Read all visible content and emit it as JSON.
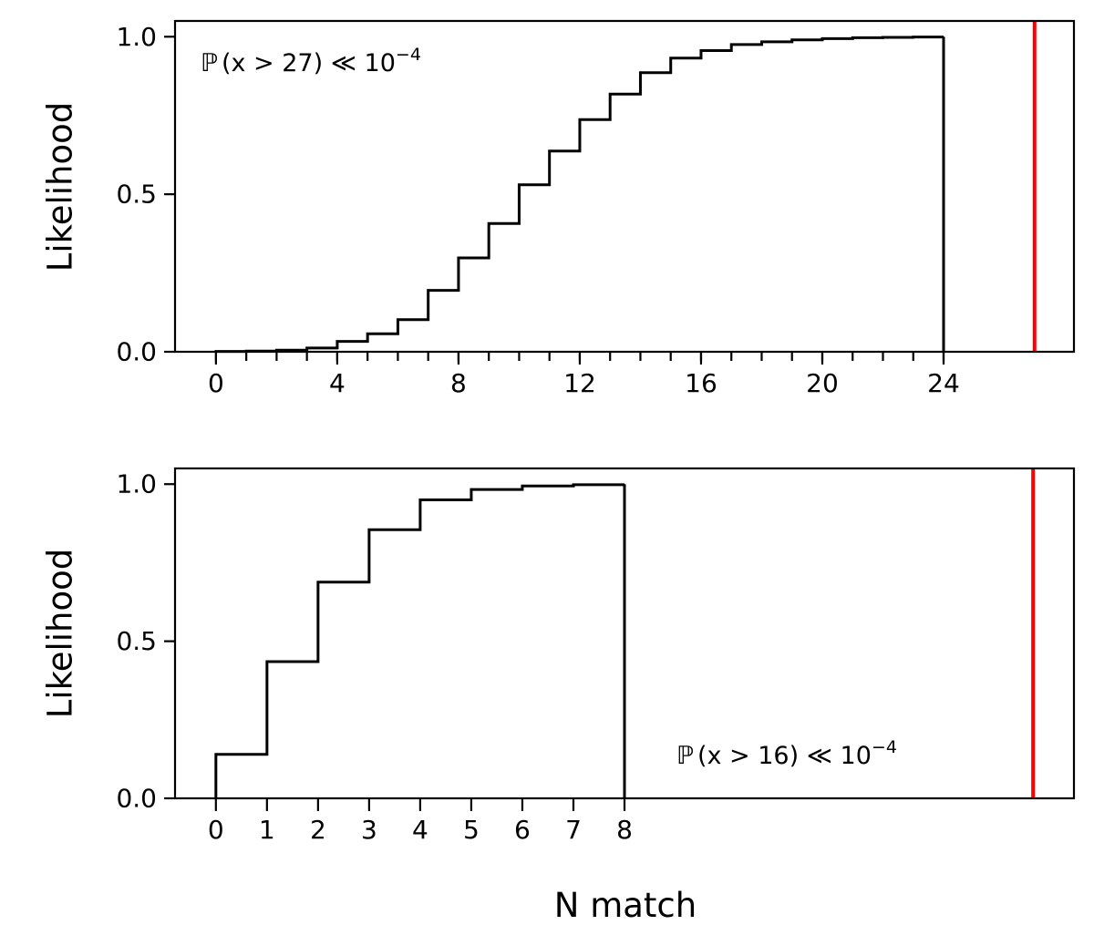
{
  "chart_data": [
    {
      "type": "step",
      "ylabel": "Likelihood",
      "xlabel": "",
      "x": [
        0,
        1,
        2,
        3,
        4,
        5,
        6,
        7,
        8,
        9,
        10,
        11,
        12,
        13,
        14,
        15,
        16,
        17,
        18,
        19,
        20,
        21,
        22,
        23,
        24
      ],
      "values": [
        0.001,
        0.002,
        0.005,
        0.012,
        0.033,
        0.057,
        0.102,
        0.195,
        0.298,
        0.407,
        0.53,
        0.637,
        0.737,
        0.818,
        0.886,
        0.932,
        0.956,
        0.975,
        0.984,
        0.99,
        0.994,
        0.997,
        0.998,
        0.999,
        1.0
      ],
      "xticks": [
        "0",
        "4",
        "8",
        "12",
        "16",
        "20",
        "24"
      ],
      "yticks": [
        "0.0",
        "0.5",
        "1.0"
      ],
      "xlim": [
        -1.35,
        28.3
      ],
      "ylim": [
        0,
        1.05
      ],
      "vline": {
        "x": 27,
        "color": "#ff0000"
      },
      "line_color": "#000000",
      "annotation": {
        "prefix": "ℙ",
        "body": "(x > 27) ≪ 10",
        "exponent": "−4"
      }
    },
    {
      "type": "step",
      "ylabel": "Likelihood",
      "xlabel": "N match",
      "x": [
        0,
        1,
        2,
        3,
        4,
        5,
        6,
        7,
        8
      ],
      "values": [
        0.14,
        0.435,
        0.688,
        0.855,
        0.95,
        0.983,
        0.994,
        0.998,
        1.0
      ],
      "xticks": [
        "0",
        "1",
        "2",
        "3",
        "4",
        "5",
        "6",
        "7",
        "8"
      ],
      "yticks": [
        "0.0",
        "0.5",
        "1.0"
      ],
      "xlim": [
        -0.8,
        16.8
      ],
      "ylim": [
        0,
        1.05
      ],
      "vline": {
        "x": 16,
        "color": "#ff0000"
      },
      "line_color": "#000000",
      "annotation": {
        "prefix": "ℙ",
        "body": "(x > 16) ≪ 10",
        "exponent": "−4"
      }
    }
  ]
}
